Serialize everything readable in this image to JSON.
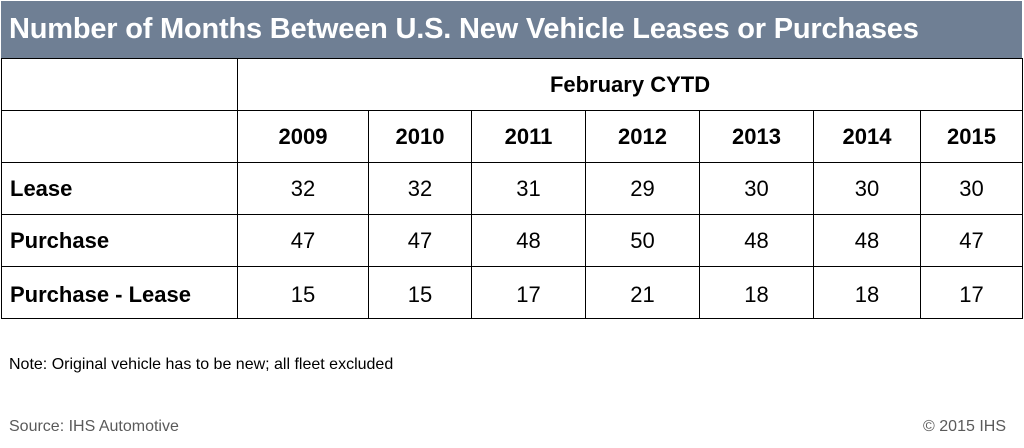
{
  "chart_data": {
    "type": "table",
    "title": "Number of Months Between U.S. New Vehicle Leases or Purchases",
    "period_label": "February CYTD",
    "columns": [
      "2009",
      "2010",
      "2011",
      "2012",
      "2013",
      "2014",
      "2015"
    ],
    "rows": [
      {
        "label": "Lease",
        "values": [
          32,
          32,
          31,
          29,
          30,
          30,
          30
        ]
      },
      {
        "label": "Purchase",
        "values": [
          47,
          47,
          48,
          50,
          48,
          48,
          47
        ]
      },
      {
        "label": "Purchase - Lease",
        "values": [
          15,
          15,
          17,
          21,
          18,
          18,
          17
        ]
      }
    ],
    "note": "Note: Original vehicle has to be new; all fleet excluded",
    "source": "Source: IHS Automotive",
    "copyright": "© 2015 IHS"
  },
  "colors": {
    "title_bar_bg": "#6f7f94",
    "title_text": "#ffffff",
    "footer_text": "#5a5a5a"
  }
}
